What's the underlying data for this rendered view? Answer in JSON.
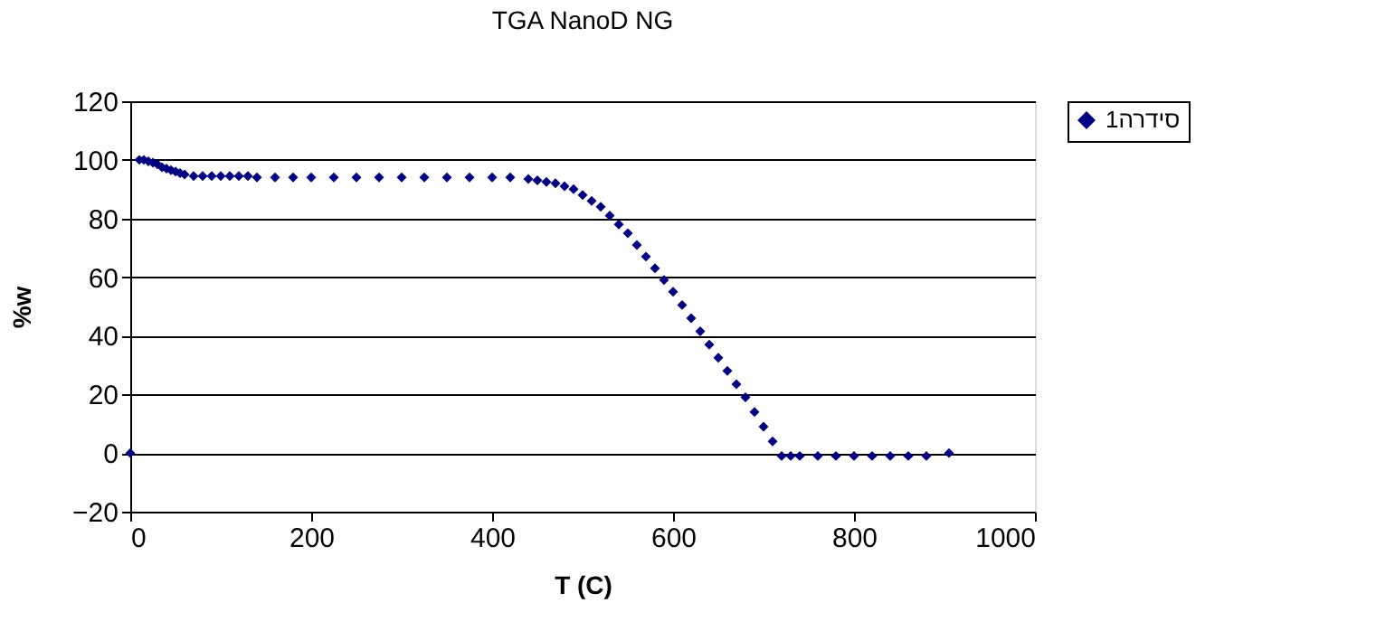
{
  "chart_data": {
    "type": "scatter",
    "title": "TGA NanoD NG",
    "xlabel": "T (C)",
    "ylabel": "%w",
    "xlim": [
      0,
      1000
    ],
    "xticks": [
      0,
      200,
      400,
      600,
      800,
      1000
    ],
    "ylim": [
      -20,
      120
    ],
    "yticks": [
      -20,
      0,
      20,
      40,
      60,
      80,
      100,
      120
    ],
    "grid": "y",
    "legend": "right",
    "marker": "diamond",
    "series": [
      {
        "name": "סידרה1",
        "color": "#000080",
        "x": [
          0,
          10,
          15,
          20,
          25,
          30,
          35,
          40,
          45,
          50,
          55,
          60,
          70,
          80,
          90,
          100,
          110,
          120,
          130,
          140,
          160,
          180,
          200,
          225,
          250,
          275,
          300,
          325,
          350,
          375,
          400,
          420,
          440,
          450,
          460,
          470,
          480,
          490,
          500,
          510,
          520,
          530,
          540,
          550,
          560,
          570,
          580,
          590,
          600,
          610,
          620,
          630,
          640,
          650,
          660,
          670,
          680,
          690,
          700,
          710,
          720,
          730,
          740,
          760,
          780,
          800,
          820,
          840,
          860,
          880,
          905
        ],
        "values": [
          0,
          100,
          100,
          99.5,
          99,
          98.5,
          97.5,
          97,
          96.5,
          96,
          95.5,
          95,
          94.5,
          94.5,
          94.5,
          94.5,
          94.5,
          94.5,
          94.5,
          94,
          94,
          94,
          94,
          94,
          94,
          94,
          94,
          94,
          94,
          94,
          94,
          94,
          93.5,
          93,
          92.5,
          92,
          91,
          90,
          88,
          86,
          84,
          81,
          78,
          75,
          71,
          67,
          63,
          59,
          55,
          50.5,
          46,
          41.5,
          37,
          32.5,
          28,
          23.5,
          19,
          14,
          9,
          4,
          -1,
          -1,
          -1,
          -1,
          -1,
          -1,
          -1,
          -1,
          -1,
          -1,
          0
        ]
      }
    ]
  }
}
